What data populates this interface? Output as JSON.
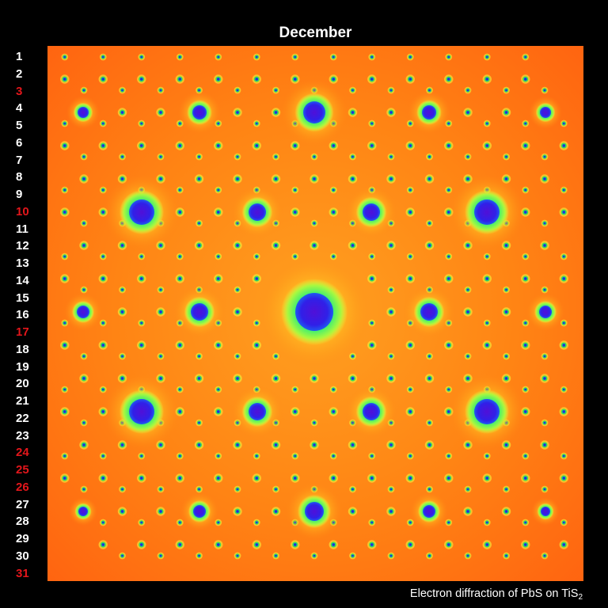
{
  "title": "December",
  "days": [
    {
      "label": "1",
      "highlight": false
    },
    {
      "label": "2",
      "highlight": false
    },
    {
      "label": "3",
      "highlight": true
    },
    {
      "label": "4",
      "highlight": false
    },
    {
      "label": "5",
      "highlight": false
    },
    {
      "label": "6",
      "highlight": false
    },
    {
      "label": "7",
      "highlight": false
    },
    {
      "label": "8",
      "highlight": false
    },
    {
      "label": "9",
      "highlight": false
    },
    {
      "label": "10",
      "highlight": true
    },
    {
      "label": "11",
      "highlight": false
    },
    {
      "label": "12",
      "highlight": false
    },
    {
      "label": "13",
      "highlight": false
    },
    {
      "label": "14",
      "highlight": false
    },
    {
      "label": "15",
      "highlight": false
    },
    {
      "label": "16",
      "highlight": false
    },
    {
      "label": "17",
      "highlight": true
    },
    {
      "label": "18",
      "highlight": false
    },
    {
      "label": "19",
      "highlight": false
    },
    {
      "label": "20",
      "highlight": false
    },
    {
      "label": "21",
      "highlight": false
    },
    {
      "label": "22",
      "highlight": false
    },
    {
      "label": "23",
      "highlight": false
    },
    {
      "label": "24",
      "highlight": true
    },
    {
      "label": "25",
      "highlight": true
    },
    {
      "label": "26",
      "highlight": true
    },
    {
      "label": "27",
      "highlight": false
    },
    {
      "label": "28",
      "highlight": false
    },
    {
      "label": "29",
      "highlight": false
    },
    {
      "label": "30",
      "highlight": false
    },
    {
      "label": "31",
      "highlight": true
    }
  ],
  "caption": {
    "prefix": "Electron diffraction of PbS on TiS",
    "subscript": "2"
  },
  "colors": {
    "background": "#000000",
    "day_normal": "#ffffff",
    "day_highlight": "#e3161b",
    "pattern_background": "#ff7a10",
    "pattern_hot": "#ff5a10",
    "spot_glow": "#f5ff30",
    "spot_halo": "#40e870",
    "spot_core": "#3a1ce8"
  }
}
